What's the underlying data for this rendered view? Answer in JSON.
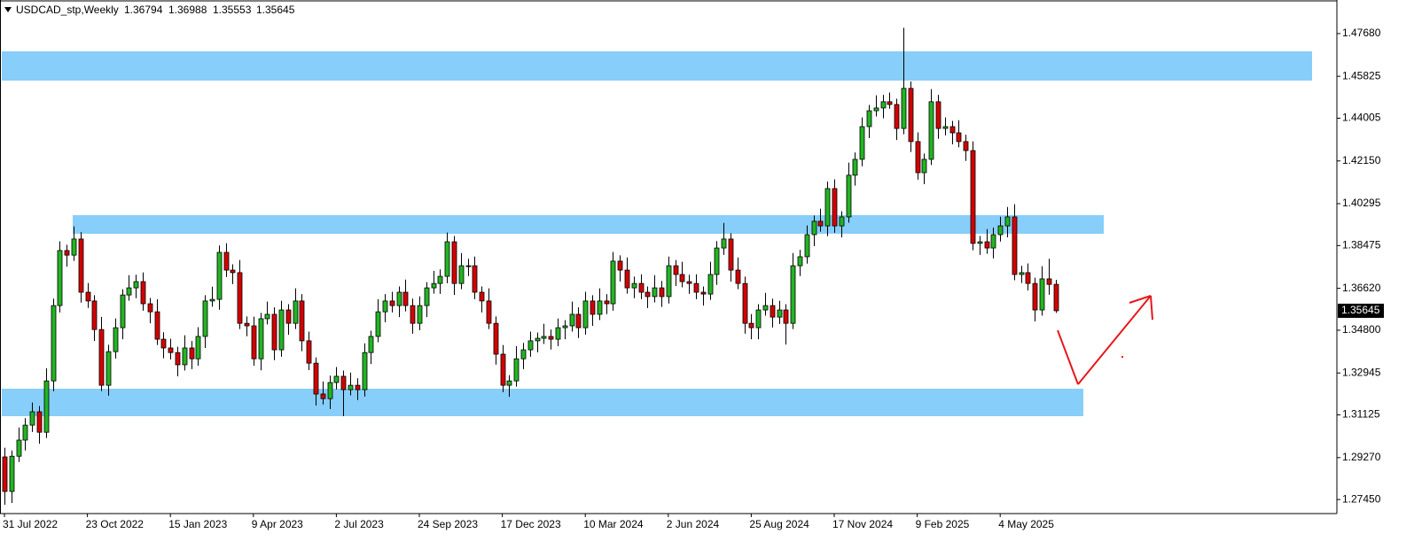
{
  "chart_data": {
    "type": "candlestick",
    "title": "USDCAD_stp,Weekly",
    "up_color": "#22b522",
    "down_color": "#d40000",
    "grid": false,
    "categories": [
      "31 Jul 2022",
      null,
      null,
      null,
      null,
      null,
      null,
      null,
      null,
      null,
      null,
      null,
      "23 Oct 2022",
      null,
      null,
      null,
      null,
      null,
      null,
      null,
      null,
      null,
      null,
      null,
      "15 Jan 2023",
      null,
      null,
      null,
      null,
      null,
      null,
      null,
      null,
      null,
      null,
      null,
      "9 Apr 2023",
      null,
      null,
      null,
      null,
      null,
      null,
      null,
      null,
      null,
      null,
      null,
      "2 Jul 2023",
      null,
      null,
      null,
      null,
      null,
      null,
      null,
      null,
      null,
      null,
      null,
      "24 Sep 2023",
      null,
      null,
      null,
      null,
      null,
      null,
      null,
      null,
      null,
      null,
      null,
      "17 Dec 2023",
      null,
      null,
      null,
      null,
      null,
      null,
      null,
      null,
      null,
      null,
      null,
      "10 Mar 2024",
      null,
      null,
      null,
      null,
      null,
      null,
      null,
      null,
      null,
      null,
      null,
      "2 Jun 2024",
      null,
      null,
      null,
      null,
      null,
      null,
      null,
      null,
      null,
      null,
      null,
      "25 Aug 2024",
      null,
      null,
      null,
      null,
      null,
      null,
      null,
      null,
      null,
      null,
      null,
      "17 Nov 2024",
      null,
      null,
      null,
      null,
      null,
      null,
      null,
      null,
      null,
      null,
      null,
      "9 Feb 2025",
      null,
      null,
      null,
      null,
      null,
      null,
      null,
      null,
      null,
      null,
      null,
      "4 May 2025",
      null,
      null,
      null,
      null,
      null,
      null,
      null,
      null
    ],
    "open": [
      1.293,
      1.278,
      1.2933,
      1.3003,
      1.3068,
      1.3126,
      1.3037,
      1.326,
      1.3587,
      1.3826,
      1.3806,
      1.3876,
      1.3645,
      1.3607,
      1.3483,
      1.3241,
      1.3387,
      1.3491,
      1.3633,
      1.3664,
      1.3691,
      1.3595,
      1.356,
      1.3441,
      1.3403,
      1.3383,
      1.333,
      1.3403,
      1.3356,
      1.3453,
      1.3607,
      1.3614,
      1.3818,
      1.3741,
      1.373,
      1.351,
      1.3499,
      1.3356,
      1.353,
      1.3549,
      1.3395,
      1.3568,
      1.351,
      1.3607,
      1.3434,
      1.3337,
      1.3203,
      1.3183,
      1.3253,
      1.328,
      1.3222,
      1.3241,
      1.3222,
      1.3383,
      1.3453,
      1.356,
      1.3607,
      1.3587,
      1.3645,
      1.3587,
      1.351,
      1.3587,
      1.3664,
      1.3683,
      1.3714,
      1.3864,
      1.3683,
      1.376,
      1.376,
      1.3645,
      1.3607,
      1.351,
      1.3376,
      1.3241,
      1.326,
      1.3356,
      1.3395,
      1.3434,
      1.3445,
      1.3453,
      1.3441,
      1.3491,
      1.3499,
      1.3549,
      1.3491,
      1.3607,
      1.3549,
      1.3607,
      1.3595,
      1.378,
      1.3741,
      1.3664,
      1.3683,
      1.3645,
      1.3626,
      1.3664,
      1.3626,
      1.376,
      1.3722,
      1.3691,
      1.3683,
      1.3645,
      1.3637,
      1.3722,
      1.3837,
      1.3876,
      1.3741,
      1.3683,
      1.351,
      1.3491,
      1.3568,
      1.3587,
      1.3537,
      1.3568,
      1.351,
      1.376,
      1.3799,
      1.3895,
      1.3953,
      1.3933,
      1.4095,
      1.3933,
      1.3972,
      1.4153,
      1.4222,
      1.4364,
      1.4433,
      1.4445,
      1.4472,
      1.446,
      1.4356,
      1.453,
      1.4299,
      1.4164,
      1.4222,
      1.4472,
      1.4356,
      1.4364,
      1.4337,
      1.4299,
      1.426,
      1.3857,
      1.3864,
      1.3837,
      1.3895,
      1.3933,
      1.3972,
      1.3722,
      1.373,
      1.3683,
      1.3568,
      1.3703,
      1.36794
    ],
    "high": [
      1.297,
      1.2958,
      1.3058,
      1.3098,
      1.3166,
      1.3151,
      1.3315,
      1.3617,
      1.3866,
      1.3851,
      1.3931,
      1.3906,
      1.3685,
      1.3632,
      1.3538,
      1.3417,
      1.3531,
      1.3658,
      1.3719,
      1.3721,
      1.3731,
      1.362,
      1.3615,
      1.3471,
      1.3443,
      1.3408,
      1.3458,
      1.3433,
      1.3493,
      1.3632,
      1.3669,
      1.3848,
      1.3858,
      1.3766,
      1.3785,
      1.354,
      1.3539,
      1.3555,
      1.3604,
      1.3579,
      1.3608,
      1.3593,
      1.3662,
      1.3637,
      1.3474,
      1.3362,
      1.3258,
      1.3283,
      1.332,
      1.3305,
      1.3296,
      1.3271,
      1.3423,
      1.3478,
      1.3615,
      1.3637,
      1.3647,
      1.367,
      1.37,
      1.3617,
      1.3627,
      1.3689,
      1.3738,
      1.3744,
      1.3904,
      1.3889,
      1.3815,
      1.379,
      1.38,
      1.367,
      1.3662,
      1.354,
      1.3416,
      1.3285,
      1.3411,
      1.3425,
      1.3474,
      1.347,
      1.3508,
      1.3483,
      1.3531,
      1.3524,
      1.3604,
      1.3579,
      1.3647,
      1.3632,
      1.3662,
      1.3637,
      1.382,
      1.3805,
      1.3796,
      1.3713,
      1.3723,
      1.367,
      1.3719,
      1.3694,
      1.38,
      1.3785,
      1.3777,
      1.3721,
      1.3723,
      1.367,
      1.3777,
      1.3867,
      1.3946,
      1.3901,
      1.3796,
      1.3713,
      1.355,
      1.3593,
      1.3642,
      1.3617,
      1.3608,
      1.3593,
      1.3815,
      1.3829,
      1.3935,
      1.3978,
      1.4008,
      1.4125,
      1.4135,
      1.3997,
      1.4208,
      1.4252,
      1.4404,
      1.4458,
      1.45,
      1.4502,
      1.4512,
      1.4485,
      1.4793,
      1.456,
      1.4339,
      1.4247,
      1.4527,
      1.4502,
      1.4404,
      1.4389,
      1.4392,
      1.4329,
      1.43,
      1.3889,
      1.3919,
      1.3925,
      1.3973,
      1.4015,
      1.4027,
      1.376,
      1.377,
      1.3708,
      1.3758,
      1.379,
      1.36988
    ],
    "low": [
      1.2722,
      1.273,
      1.2908,
      1.2958,
      1.3038,
      1.2987,
      1.3012,
      1.3215,
      1.3557,
      1.3756,
      1.3781,
      1.36,
      1.3577,
      1.3433,
      1.3216,
      1.3196,
      1.3357,
      1.3441,
      1.3608,
      1.3619,
      1.3565,
      1.351,
      1.3416,
      1.3358,
      1.3353,
      1.328,
      1.3305,
      1.3311,
      1.3326,
      1.3403,
      1.3582,
      1.3569,
      1.3711,
      1.368,
      1.3485,
      1.3454,
      1.3326,
      1.3306,
      1.3505,
      1.335,
      1.3365,
      1.346,
      1.3485,
      1.3389,
      1.3307,
      1.3153,
      1.3158,
      1.3138,
      1.3223,
      1.3107,
      1.3197,
      1.3177,
      1.3192,
      1.3333,
      1.3428,
      1.3515,
      1.3557,
      1.3537,
      1.3562,
      1.3465,
      1.348,
      1.3537,
      1.3639,
      1.3638,
      1.3684,
      1.3633,
      1.3658,
      1.3715,
      1.3615,
      1.3557,
      1.3485,
      1.3331,
      1.3211,
      1.3191,
      1.3235,
      1.3311,
      1.3365,
      1.3384,
      1.342,
      1.3396,
      1.3411,
      1.3441,
      1.3474,
      1.3446,
      1.3461,
      1.3499,
      1.3524,
      1.355,
      1.3565,
      1.3691,
      1.3639,
      1.3619,
      1.3615,
      1.3576,
      1.3601,
      1.3581,
      1.3596,
      1.3672,
      1.3666,
      1.3638,
      1.3615,
      1.3587,
      1.3612,
      1.3677,
      1.3807,
      1.3691,
      1.3658,
      1.3465,
      1.3441,
      1.3441,
      1.3543,
      1.3492,
      1.3507,
      1.3418,
      1.3485,
      1.3715,
      1.3769,
      1.3845,
      1.3908,
      1.3888,
      1.3903,
      1.3883,
      1.3947,
      1.4108,
      1.4192,
      1.4314,
      1.4408,
      1.44,
      1.4442,
      1.4306,
      1.4331,
      1.4254,
      1.4134,
      1.4114,
      1.4197,
      1.4311,
      1.4326,
      1.4287,
      1.4274,
      1.4215,
      1.3827,
      1.3807,
      1.3812,
      1.3792,
      1.3865,
      1.3883,
      1.3697,
      1.3685,
      1.3653,
      1.3518,
      1.3543,
      1.3634,
      1.35553
    ],
    "close": [
      1.278,
      1.2933,
      1.3003,
      1.3068,
      1.3126,
      1.3037,
      1.326,
      1.3587,
      1.3826,
      1.3806,
      1.3876,
      1.3645,
      1.3607,
      1.3483,
      1.3241,
      1.3387,
      1.3491,
      1.3633,
      1.3664,
      1.3691,
      1.3595,
      1.356,
      1.3441,
      1.3403,
      1.3383,
      1.333,
      1.3403,
      1.3356,
      1.3453,
      1.3607,
      1.3614,
      1.3818,
      1.3741,
      1.373,
      1.351,
      1.3499,
      1.3356,
      1.353,
      1.3549,
      1.3395,
      1.3568,
      1.351,
      1.3607,
      1.3434,
      1.3337,
      1.3203,
      1.3183,
      1.3253,
      1.328,
      1.3222,
      1.3241,
      1.3222,
      1.3383,
      1.3453,
      1.356,
      1.3607,
      1.3587,
      1.3645,
      1.3587,
      1.351,
      1.3587,
      1.3664,
      1.3683,
      1.3714,
      1.3864,
      1.3683,
      1.376,
      1.376,
      1.3645,
      1.3607,
      1.351,
      1.3376,
      1.3241,
      1.326,
      1.3356,
      1.3395,
      1.3434,
      1.3445,
      1.3453,
      1.3441,
      1.3491,
      1.3499,
      1.3549,
      1.3491,
      1.3607,
      1.3549,
      1.3607,
      1.3595,
      1.378,
      1.3741,
      1.3664,
      1.3683,
      1.3645,
      1.3626,
      1.3664,
      1.3626,
      1.376,
      1.3722,
      1.3691,
      1.3683,
      1.3645,
      1.3637,
      1.3722,
      1.3837,
      1.3876,
      1.3741,
      1.3683,
      1.351,
      1.3491,
      1.3568,
      1.3587,
      1.3537,
      1.3568,
      1.351,
      1.376,
      1.3799,
      1.3895,
      1.3953,
      1.3933,
      1.4095,
      1.3933,
      1.3972,
      1.4153,
      1.4222,
      1.4364,
      1.4433,
      1.4445,
      1.4472,
      1.446,
      1.4356,
      1.453,
      1.4299,
      1.4164,
      1.4222,
      1.4472,
      1.4356,
      1.4364,
      1.4337,
      1.4299,
      1.426,
      1.3857,
      1.3864,
      1.3837,
      1.3895,
      1.3933,
      1.3972,
      1.3722,
      1.373,
      1.3683,
      1.3568,
      1.3703,
      1.3679,
      1.35645
    ],
    "ylim": [
      1.2684,
      1.4906
    ],
    "yticks": [
      {
        "value": 1.2745,
        "label": "1.27450"
      },
      {
        "value": 1.2927,
        "label": "1.29270"
      },
      {
        "value": 1.31125,
        "label": "1.31125"
      },
      {
        "value": 1.32945,
        "label": "1.32945"
      },
      {
        "value": 1.348,
        "label": "1.34800"
      },
      {
        "value": 1.3662,
        "label": "1.36620"
      },
      {
        "value": 1.38475,
        "label": "1.38475"
      },
      {
        "value": 1.40295,
        "label": "1.40295"
      },
      {
        "value": 1.4215,
        "label": "1.42150"
      },
      {
        "value": 1.44005,
        "label": "1.44005"
      },
      {
        "value": 1.45825,
        "label": "1.45825"
      },
      {
        "value": 1.4768,
        "label": "1.47680"
      }
    ]
  }
}
